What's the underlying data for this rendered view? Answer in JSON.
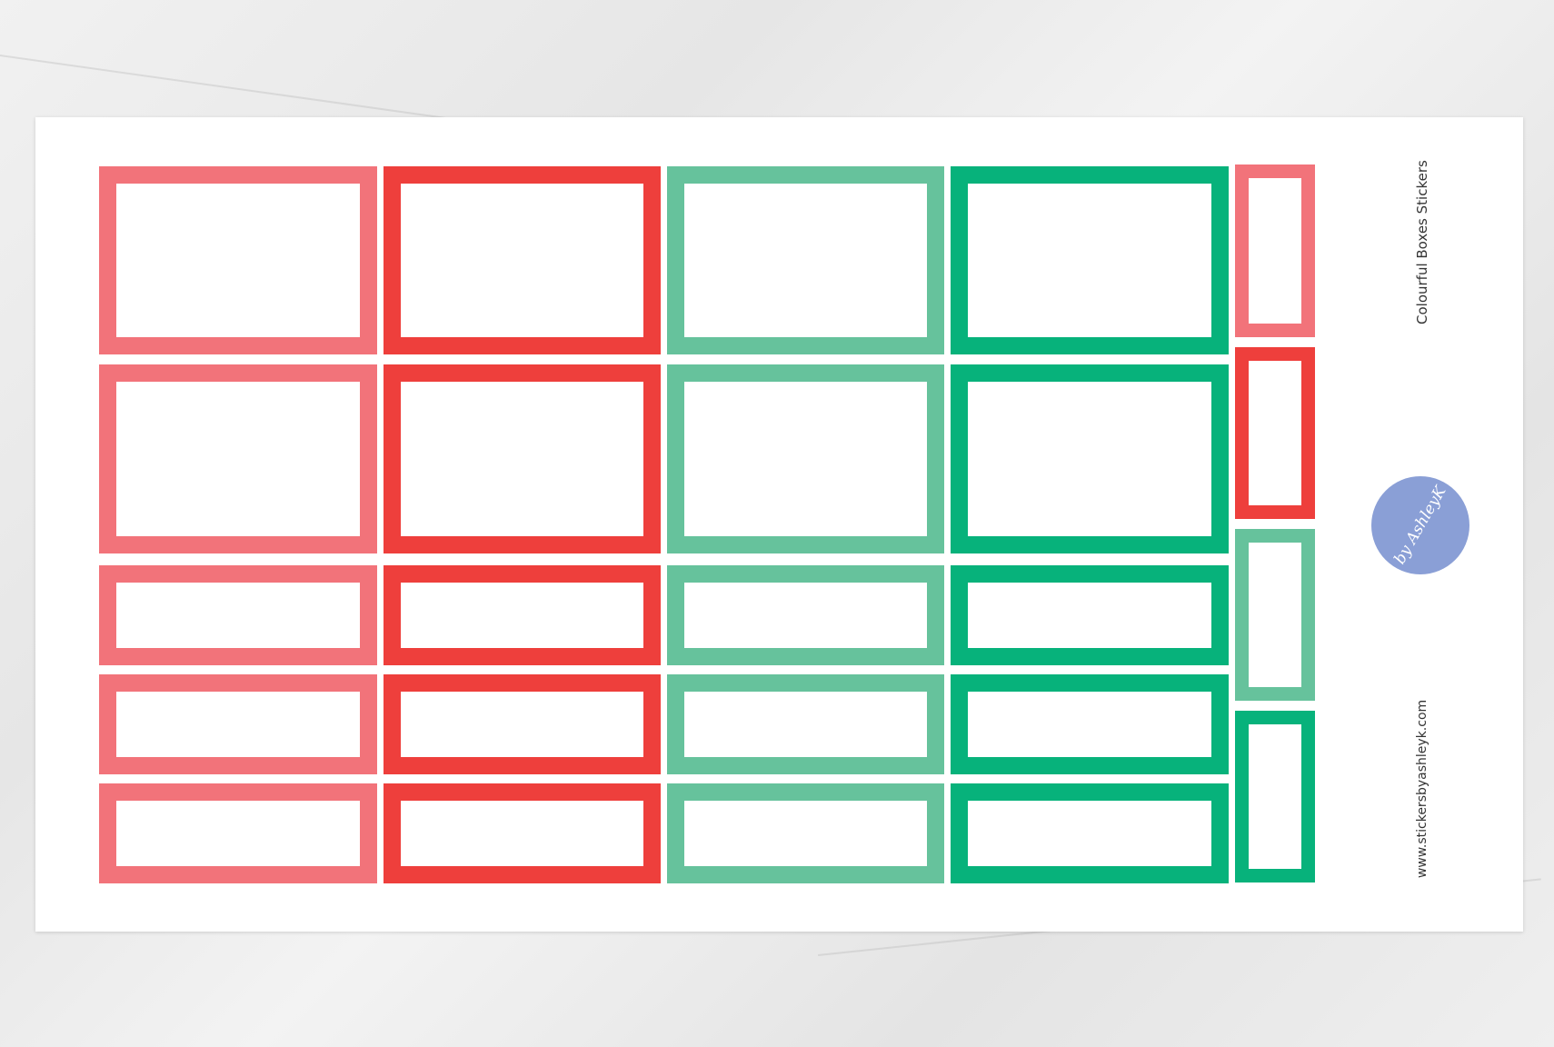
{
  "product_title": "Colourful Boxes Stickers",
  "website": "www.stickersbyashleyk.com",
  "logo_text": "by AshleyK",
  "colors": {
    "pink": "#f2737a",
    "red": "#ee3f3c",
    "mint": "#66c29c",
    "green": "#07b27b",
    "logo": "#8a9fd6"
  },
  "grid": {
    "columns": [
      "pink",
      "red",
      "mint",
      "green"
    ],
    "rows": [
      "large",
      "large",
      "small",
      "small",
      "small"
    ],
    "side_column": [
      "pink",
      "red",
      "mint",
      "green"
    ]
  }
}
